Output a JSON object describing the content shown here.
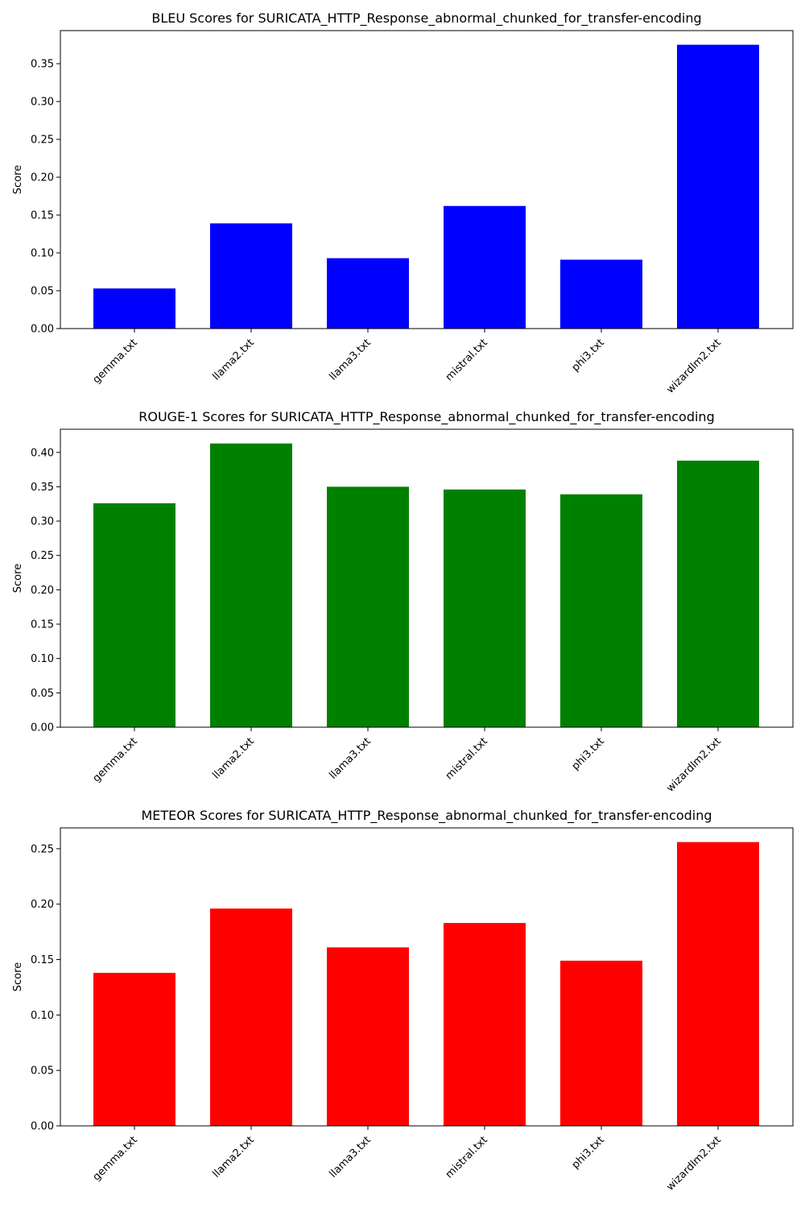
{
  "chart_data": [
    {
      "type": "bar",
      "title": "BLEU Scores for SURICATA_HTTP_Response_abnormal_chunked_for_transfer-encoding",
      "xlabel": "",
      "ylabel": "Score",
      "categories": [
        "gemma.txt",
        "llama2.txt",
        "llama3.txt",
        "mistral.txt",
        "phi3.txt",
        "wizardlm2.txt"
      ],
      "values": [
        0.053,
        0.139,
        0.093,
        0.162,
        0.091,
        0.375
      ],
      "ylim": [
        0,
        0.3937
      ],
      "yticks": [
        "0.00",
        "0.05",
        "0.10",
        "0.15",
        "0.20",
        "0.25",
        "0.30",
        "0.35"
      ],
      "color": "#0000ff",
      "grid": false
    },
    {
      "type": "bar",
      "title": "ROUGE-1 Scores for SURICATA_HTTP_Response_abnormal_chunked_for_transfer-encoding",
      "xlabel": "",
      "ylabel": "Score",
      "categories": [
        "gemma.txt",
        "llama2.txt",
        "llama3.txt",
        "mistral.txt",
        "phi3.txt",
        "wizardlm2.txt"
      ],
      "values": [
        0.326,
        0.413,
        0.35,
        0.346,
        0.339,
        0.388
      ],
      "ylim": [
        0,
        0.4337
      ],
      "yticks": [
        "0.00",
        "0.05",
        "0.10",
        "0.15",
        "0.20",
        "0.25",
        "0.30",
        "0.35",
        "0.40"
      ],
      "color": "#008000",
      "grid": false
    },
    {
      "type": "bar",
      "title": "METEOR Scores for SURICATA_HTTP_Response_abnormal_chunked_for_transfer-encoding",
      "xlabel": "",
      "ylabel": "Score",
      "categories": [
        "gemma.txt",
        "llama2.txt",
        "llama3.txt",
        "mistral.txt",
        "phi3.txt",
        "wizardlm2.txt"
      ],
      "values": [
        0.138,
        0.196,
        0.161,
        0.183,
        0.149,
        0.256
      ],
      "ylim": [
        0,
        0.2688
      ],
      "yticks": [
        "0.00",
        "0.05",
        "0.10",
        "0.15",
        "0.20",
        "0.25"
      ],
      "color": "#ff0000",
      "grid": false
    }
  ]
}
